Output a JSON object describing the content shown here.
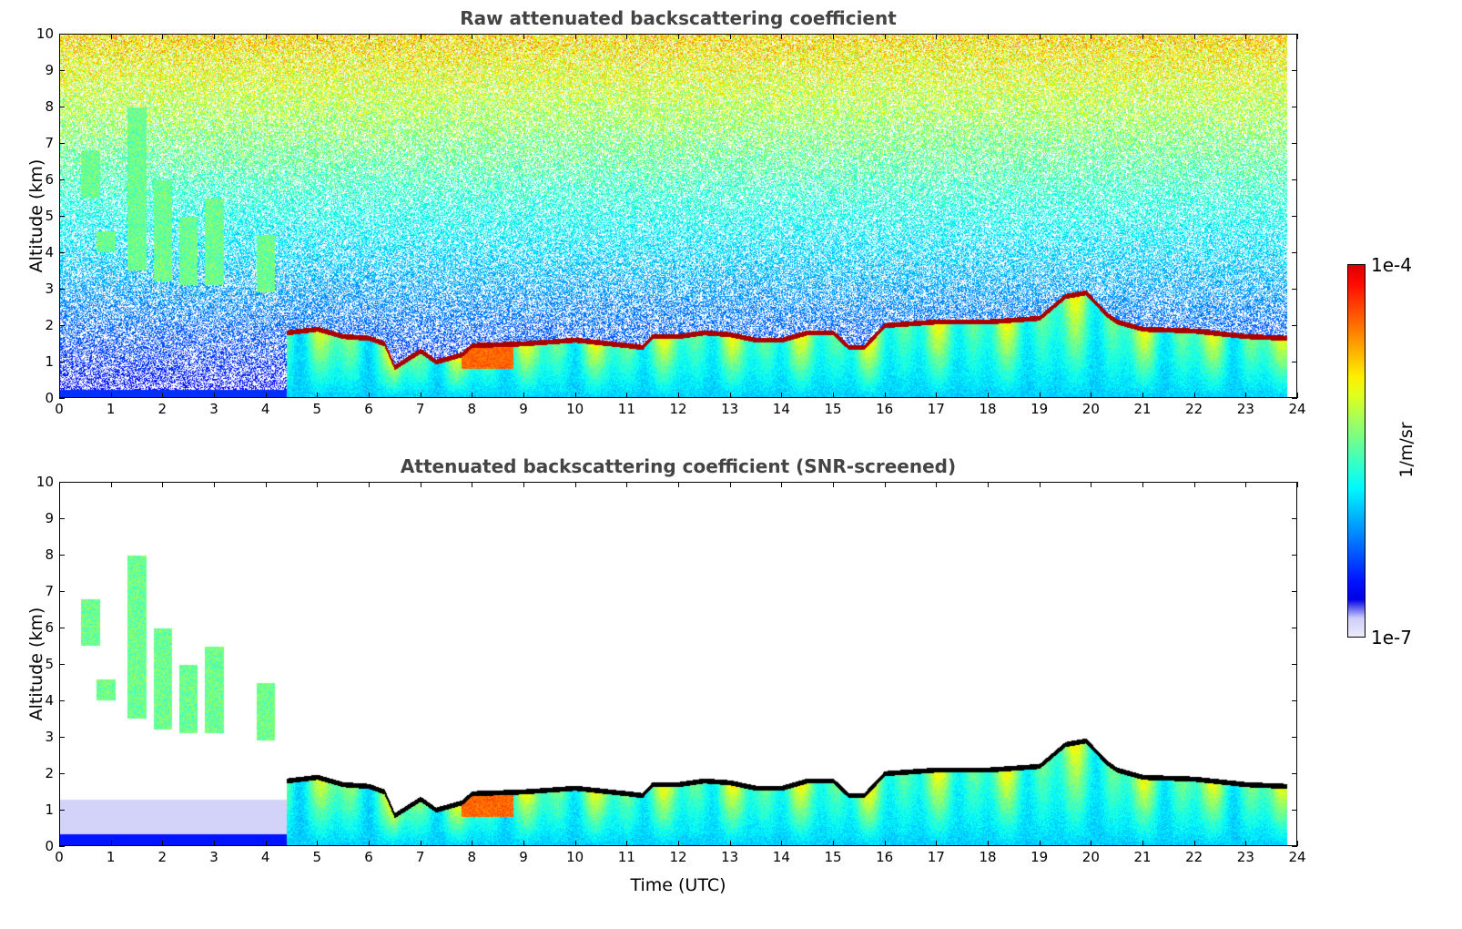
{
  "chart_data": [
    {
      "type": "heatmap",
      "title": "Raw attenuated backscattering coefficient",
      "xlabel": "",
      "ylabel": "Altitude (km)",
      "xlim": [
        0,
        24
      ],
      "ylim": [
        0,
        10
      ],
      "xticks": [
        "0",
        "1",
        "2",
        "3",
        "4",
        "5",
        "6",
        "7",
        "8",
        "9",
        "10",
        "11",
        "12",
        "13",
        "14",
        "15",
        "16",
        "17",
        "18",
        "19",
        "20",
        "21",
        "22",
        "23",
        "24"
      ],
      "yticks": [
        "0",
        "1",
        "2",
        "3",
        "4",
        "5",
        "6",
        "7",
        "8",
        "9",
        "10"
      ],
      "screened": false
    },
    {
      "type": "heatmap",
      "title": "Attenuated backscattering coefficient (SNR-screened)",
      "xlabel": "Time (UTC)",
      "ylabel": "Altitude (km)",
      "xlim": [
        0,
        24
      ],
      "ylim": [
        0,
        10
      ],
      "xticks": [
        "0",
        "1",
        "2",
        "3",
        "4",
        "5",
        "6",
        "7",
        "8",
        "9",
        "10",
        "11",
        "12",
        "13",
        "14",
        "15",
        "16",
        "17",
        "18",
        "19",
        "20",
        "21",
        "22",
        "23",
        "24"
      ],
      "yticks": [
        "0",
        "1",
        "2",
        "3",
        "4",
        "5",
        "6",
        "7",
        "8",
        "9",
        "10"
      ],
      "screened": true
    }
  ],
  "features": {
    "cloud_base_km": [
      [
        4.4,
        1.8
      ],
      [
        5,
        1.9
      ],
      [
        5.5,
        1.7
      ],
      [
        6,
        1.65
      ],
      [
        6.3,
        1.5
      ],
      [
        6.5,
        0.85
      ],
      [
        7,
        1.3
      ],
      [
        7.3,
        1.0
      ],
      [
        7.8,
        1.2
      ],
      [
        8,
        1.45
      ],
      [
        9,
        1.5
      ],
      [
        10,
        1.6
      ],
      [
        11,
        1.45
      ],
      [
        11.3,
        1.4
      ],
      [
        11.5,
        1.7
      ],
      [
        12,
        1.7
      ],
      [
        12.5,
        1.8
      ],
      [
        13,
        1.75
      ],
      [
        13.5,
        1.6
      ],
      [
        14,
        1.6
      ],
      [
        14.5,
        1.8
      ],
      [
        15,
        1.8
      ],
      [
        15.3,
        1.4
      ],
      [
        15.6,
        1.4
      ],
      [
        16,
        2.0
      ],
      [
        17,
        2.1
      ],
      [
        18,
        2.1
      ],
      [
        19,
        2.2
      ],
      [
        19.5,
        2.8
      ],
      [
        19.9,
        2.9
      ],
      [
        20.3,
        2.3
      ],
      [
        20.5,
        2.1
      ],
      [
        21,
        1.9
      ],
      [
        22,
        1.85
      ],
      [
        23,
        1.7
      ],
      [
        23.8,
        1.65
      ]
    ],
    "cirrus": [
      [
        1.5,
        3.5,
        8.0
      ],
      [
        2.0,
        3.2,
        6.0
      ],
      [
        2.5,
        3.1,
        5.0
      ],
      [
        3.0,
        3.1,
        5.5
      ],
      [
        4.0,
        2.9,
        4.5
      ],
      [
        0.9,
        4.0,
        4.6
      ],
      [
        0.6,
        5.5,
        6.8
      ]
    ],
    "colorbar": {
      "max_label": "1e-4",
      "min_label": "1e-7",
      "unit": "1/m/sr"
    }
  }
}
